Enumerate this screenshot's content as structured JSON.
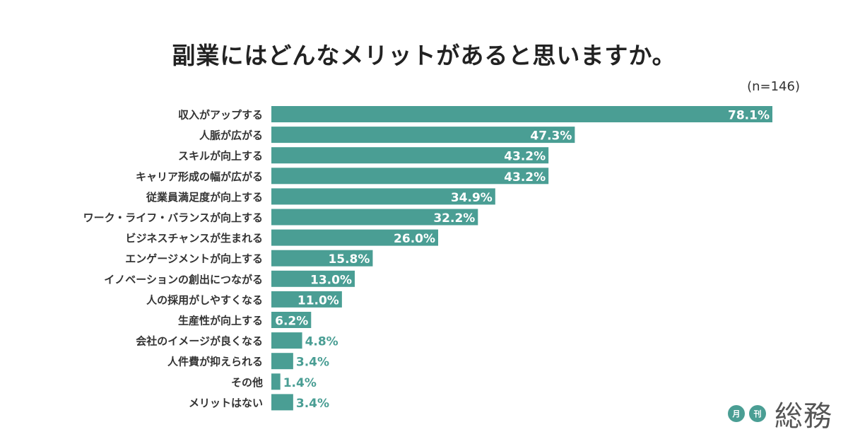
{
  "chart_data": {
    "type": "bar",
    "orientation": "horizontal",
    "title": "副業にはどんなメリットがあると思いますか。",
    "sample_note": "(n=146)",
    "unit": "%",
    "categories": [
      "収入がアップする",
      "人脈が広がる",
      "スキルが向上する",
      "キャリア形成の幅が広がる",
      "従業員満足度が向上する",
      "ワーク・ライフ・バランスが向上する",
      "ビジネスチャンスが生まれる",
      "エンゲージメントが向上する",
      "イノベーションの創出につながる",
      "人の採用がしやすくなる",
      "生産性が向上する",
      "会社のイメージが良くなる",
      "人件費が抑えられる",
      "その他",
      "メリットはない"
    ],
    "values": [
      78.1,
      47.3,
      43.2,
      43.2,
      34.9,
      32.2,
      26.0,
      15.8,
      13.0,
      11.0,
      6.2,
      4.8,
      3.4,
      1.4,
      3.4
    ],
    "value_labels": [
      "78.1%",
      "47.3%",
      "43.2%",
      "43.2%",
      "34.9%",
      "32.2%",
      "26.0%",
      "15.8%",
      "13.0%",
      "11.0%",
      "6.2%",
      "4.8%",
      "3.4%",
      "1.4%",
      "3.4%"
    ],
    "xlim": [
      0,
      100
    ],
    "grid": false,
    "bar_color": "#4a9e94"
  },
  "logo": {
    "badge1": "月",
    "badge2": "刊",
    "name": "総務"
  }
}
